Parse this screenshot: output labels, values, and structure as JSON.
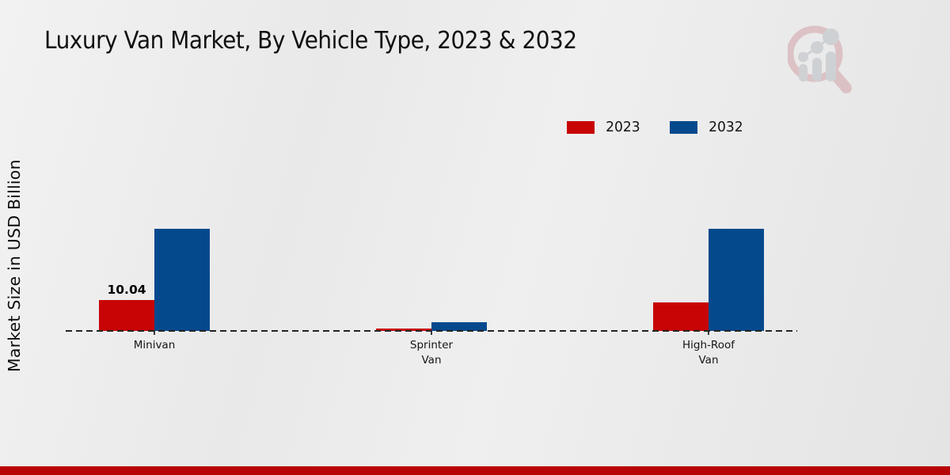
{
  "chart_data": {
    "type": "bar",
    "title": "Luxury Van Market, By Vehicle Type, 2023 & 2032",
    "ylabel": "Market Size in USD Billion",
    "xlabel": "",
    "categories": [
      "Minivan",
      "Sprinter\nVan",
      "High-Roof\nVan"
    ],
    "series": [
      {
        "name": "2023",
        "color": "#c80404",
        "values": [
          10.04,
          0.9,
          9.3
        ]
      },
      {
        "name": "2032",
        "color": "#05498d",
        "values": [
          33.5,
          2.9,
          33.7
        ]
      }
    ],
    "value_labels": [
      {
        "series_index": 0,
        "category_index": 0,
        "text": "10.04"
      }
    ],
    "ylim": [
      0,
      35
    ],
    "grid": false,
    "legend_position": "top-right",
    "baseline_style": "dashed"
  },
  "footer": {
    "bar_color": "#b80404"
  },
  "watermark": {
    "icon": "magnifier-bar-chart-logo"
  }
}
